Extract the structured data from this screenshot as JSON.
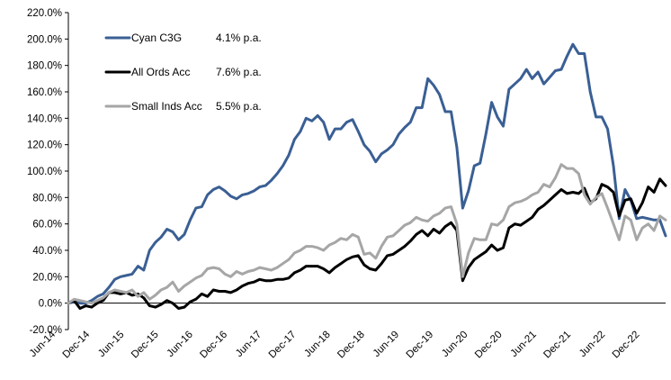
{
  "chart_data": {
    "type": "line",
    "title": "",
    "xlabel": "",
    "ylabel": "",
    "ylim": [
      -20,
      220
    ],
    "y_ticks": [
      "-20.0%",
      "0.0%",
      "20.0%",
      "40.0%",
      "60.0%",
      "80.0%",
      "100.0%",
      "120.0%",
      "140.0%",
      "160.0%",
      "180.0%",
      "200.0%",
      "220.0%"
    ],
    "y_tick_values": [
      -20,
      0,
      20,
      40,
      60,
      80,
      100,
      120,
      140,
      160,
      180,
      200,
      220
    ],
    "x_ticks": [
      "Jun-14",
      "Dec-14",
      "Jun-15",
      "Dec-15",
      "Jun-16",
      "Dec-16",
      "Jun-17",
      "Dec-17",
      "Jun-18",
      "Dec-18",
      "Jun-19",
      "Dec-19",
      "Jun-20",
      "Dec-20",
      "Jun-21",
      "Dec-21",
      "Jun-22",
      "Dec-22"
    ],
    "x_start": "Jun-14",
    "x_end": "Apr-23",
    "grid": false,
    "legend_position": "top-left",
    "series": [
      {
        "name": "Cyan C3G",
        "note": "4.1% p.a.",
        "color": "#3a5f94",
        "values": [
          0,
          1,
          0,
          0,
          2,
          5,
          7,
          12,
          18,
          20,
          21,
          22,
          28,
          25,
          40,
          46,
          50,
          56,
          54,
          48,
          52,
          63,
          72,
          73,
          82,
          86,
          88,
          85,
          81,
          79,
          82,
          83,
          85,
          88,
          89,
          93,
          98,
          104,
          112,
          124,
          130,
          140,
          138,
          142,
          137,
          124,
          132,
          132,
          137,
          139,
          130,
          120,
          115,
          107,
          113,
          116,
          120,
          128,
          133,
          137,
          148,
          148,
          170,
          165,
          158,
          145,
          145,
          118,
          72,
          85,
          104,
          106,
          128,
          152,
          141,
          134,
          162,
          166,
          170,
          177,
          170,
          175,
          166,
          171,
          176,
          177,
          187,
          196,
          189,
          189,
          160,
          141,
          141,
          132,
          104,
          64,
          86,
          78,
          64,
          65,
          64,
          63,
          63,
          51
        ]
      },
      {
        "name": "All Ords Acc",
        "note": "7.6% p.a.",
        "color": "#000000",
        "values": [
          0,
          2,
          -4,
          -2,
          -3,
          0,
          2,
          8,
          8,
          7,
          8,
          6,
          7,
          4,
          -2,
          -3,
          -1,
          2,
          0,
          -4,
          -3,
          1,
          3,
          7,
          5,
          10,
          9,
          9,
          8,
          10,
          13,
          15,
          16,
          18,
          17,
          17,
          18,
          18,
          19,
          23,
          25,
          28,
          28,
          28,
          26,
          23,
          27,
          30,
          33,
          35,
          36,
          29,
          26,
          25,
          30,
          36,
          37,
          40,
          43,
          47,
          52,
          55,
          51,
          56,
          53,
          58,
          61,
          55,
          17,
          27,
          33,
          36,
          39,
          44,
          40,
          42,
          57,
          60,
          59,
          62,
          65,
          71,
          74,
          78,
          82,
          86,
          83,
          84,
          83,
          87,
          76,
          79,
          90,
          88,
          84,
          66,
          78,
          79,
          68,
          76,
          88,
          84,
          94,
          89
        ]
      },
      {
        "name": "Small Inds Acc",
        "note": "5.5% p.a.",
        "color": "#a6a6a6",
        "values": [
          0,
          3,
          2,
          1,
          0,
          2,
          4,
          8,
          10,
          9,
          8,
          10,
          5,
          8,
          3,
          6,
          10,
          12,
          16,
          9,
          13,
          16,
          19,
          21,
          26,
          27,
          26,
          22,
          20,
          24,
          22,
          24,
          25,
          27,
          26,
          25,
          27,
          30,
          33,
          38,
          40,
          43,
          43,
          42,
          40,
          44,
          46,
          49,
          48,
          52,
          50,
          37,
          38,
          34,
          43,
          50,
          51,
          55,
          59,
          61,
          65,
          63,
          62,
          66,
          68,
          72,
          73,
          60,
          20,
          38,
          49,
          48,
          48,
          60,
          59,
          63,
          73,
          76,
          77,
          79,
          82,
          84,
          90,
          88,
          95,
          105,
          102,
          102,
          98,
          82,
          75,
          80,
          83,
          72,
          60,
          48,
          66,
          63,
          48,
          57,
          60,
          55,
          66,
          63
        ]
      }
    ]
  }
}
